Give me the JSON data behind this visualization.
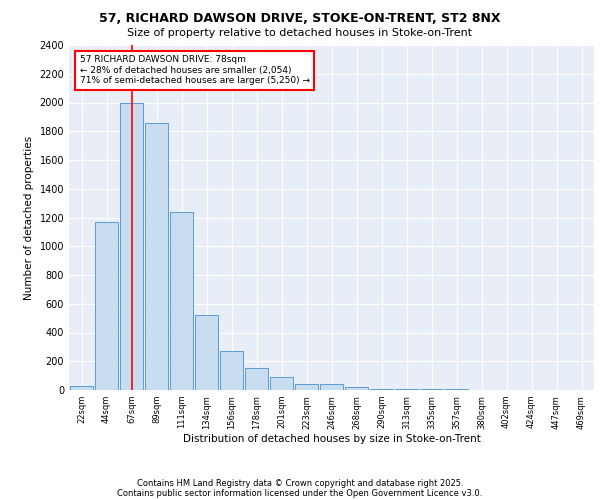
{
  "title1": "57, RICHARD DAWSON DRIVE, STOKE-ON-TRENT, ST2 8NX",
  "title2": "Size of property relative to detached houses in Stoke-on-Trent",
  "xlabel": "Distribution of detached houses by size in Stoke-on-Trent",
  "ylabel": "Number of detached properties",
  "categories": [
    "22sqm",
    "44sqm",
    "67sqm",
    "89sqm",
    "111sqm",
    "134sqm",
    "156sqm",
    "178sqm",
    "201sqm",
    "223sqm",
    "246sqm",
    "268sqm",
    "290sqm",
    "313sqm",
    "335sqm",
    "357sqm",
    "380sqm",
    "402sqm",
    "424sqm",
    "447sqm",
    "469sqm"
  ],
  "values": [
    30,
    1170,
    2000,
    1860,
    1240,
    520,
    270,
    150,
    90,
    45,
    40,
    20,
    10,
    7,
    5,
    4,
    3,
    2,
    2,
    2,
    2
  ],
  "bar_color": "#c9ddf0",
  "bar_edge_color": "#5b9bd5",
  "background_color": "#e8eef8",
  "grid_color": "#ffffff",
  "red_line_x": 2.0,
  "annotation_text": "57 RICHARD DAWSON DRIVE: 78sqm\n← 28% of detached houses are smaller (2,054)\n71% of semi-detached houses are larger (5,250) →",
  "annotation_box_color": "#cc0000",
  "ylim": [
    0,
    2400
  ],
  "yticks": [
    0,
    200,
    400,
    600,
    800,
    1000,
    1200,
    1400,
    1600,
    1800,
    2000,
    2200,
    2400
  ],
  "footnote1": "Contains HM Land Registry data © Crown copyright and database right 2025.",
  "footnote2": "Contains public sector information licensed under the Open Government Licence v3.0."
}
